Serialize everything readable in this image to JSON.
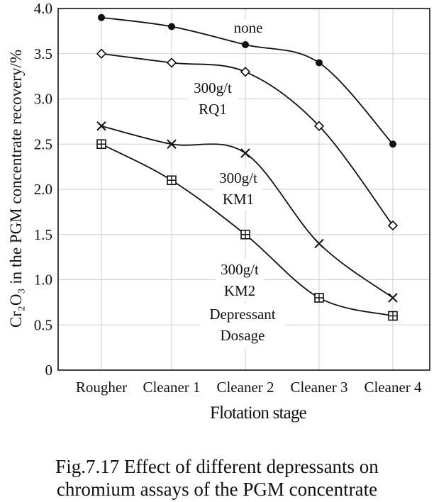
{
  "chart_data": {
    "type": "line",
    "title": "",
    "xlabel": "Flotation stage",
    "ylabel": "Cr₂O₃ in the PGM concentrate recovery/%",
    "categories": [
      "Rougher",
      "Cleaner 1",
      "Cleaner 2",
      "Cleaner 3",
      "Cleaner 4"
    ],
    "ylim": [
      0,
      4.0
    ],
    "yticks": [
      "0",
      "0.5",
      "1.0",
      "1.5",
      "2.0",
      "2.5",
      "3.0",
      "3.5",
      "4.0"
    ],
    "series": [
      {
        "name": "none",
        "marker": "circle",
        "values": [
          3.9,
          3.8,
          3.6,
          3.4,
          2.5
        ]
      },
      {
        "name": "300g/t RQ1",
        "marker": "diamond",
        "values": [
          3.5,
          3.4,
          3.3,
          2.7,
          1.6
        ]
      },
      {
        "name": "300g/t KM1",
        "marker": "x",
        "values": [
          2.7,
          2.5,
          2.4,
          1.4,
          0.8
        ]
      },
      {
        "name": "300g/t KM2",
        "marker": "square-plus",
        "values": [
          2.5,
          2.1,
          1.5,
          0.8,
          0.6
        ]
      }
    ],
    "annotations": {
      "none": "none",
      "rq1_line1": "300g/t",
      "rq1_line2": "RQ1",
      "km1_line1": "300g/t",
      "km1_line2": "KM1",
      "km2_line1": "300g/t",
      "km2_line2": "KM2",
      "dosage_line1": "Depressant",
      "dosage_line2": "Dosage"
    }
  },
  "caption": {
    "line1": "Fig.7.17 Effect of different depressants on",
    "line2": "chromium assays of the PGM concentrate"
  }
}
